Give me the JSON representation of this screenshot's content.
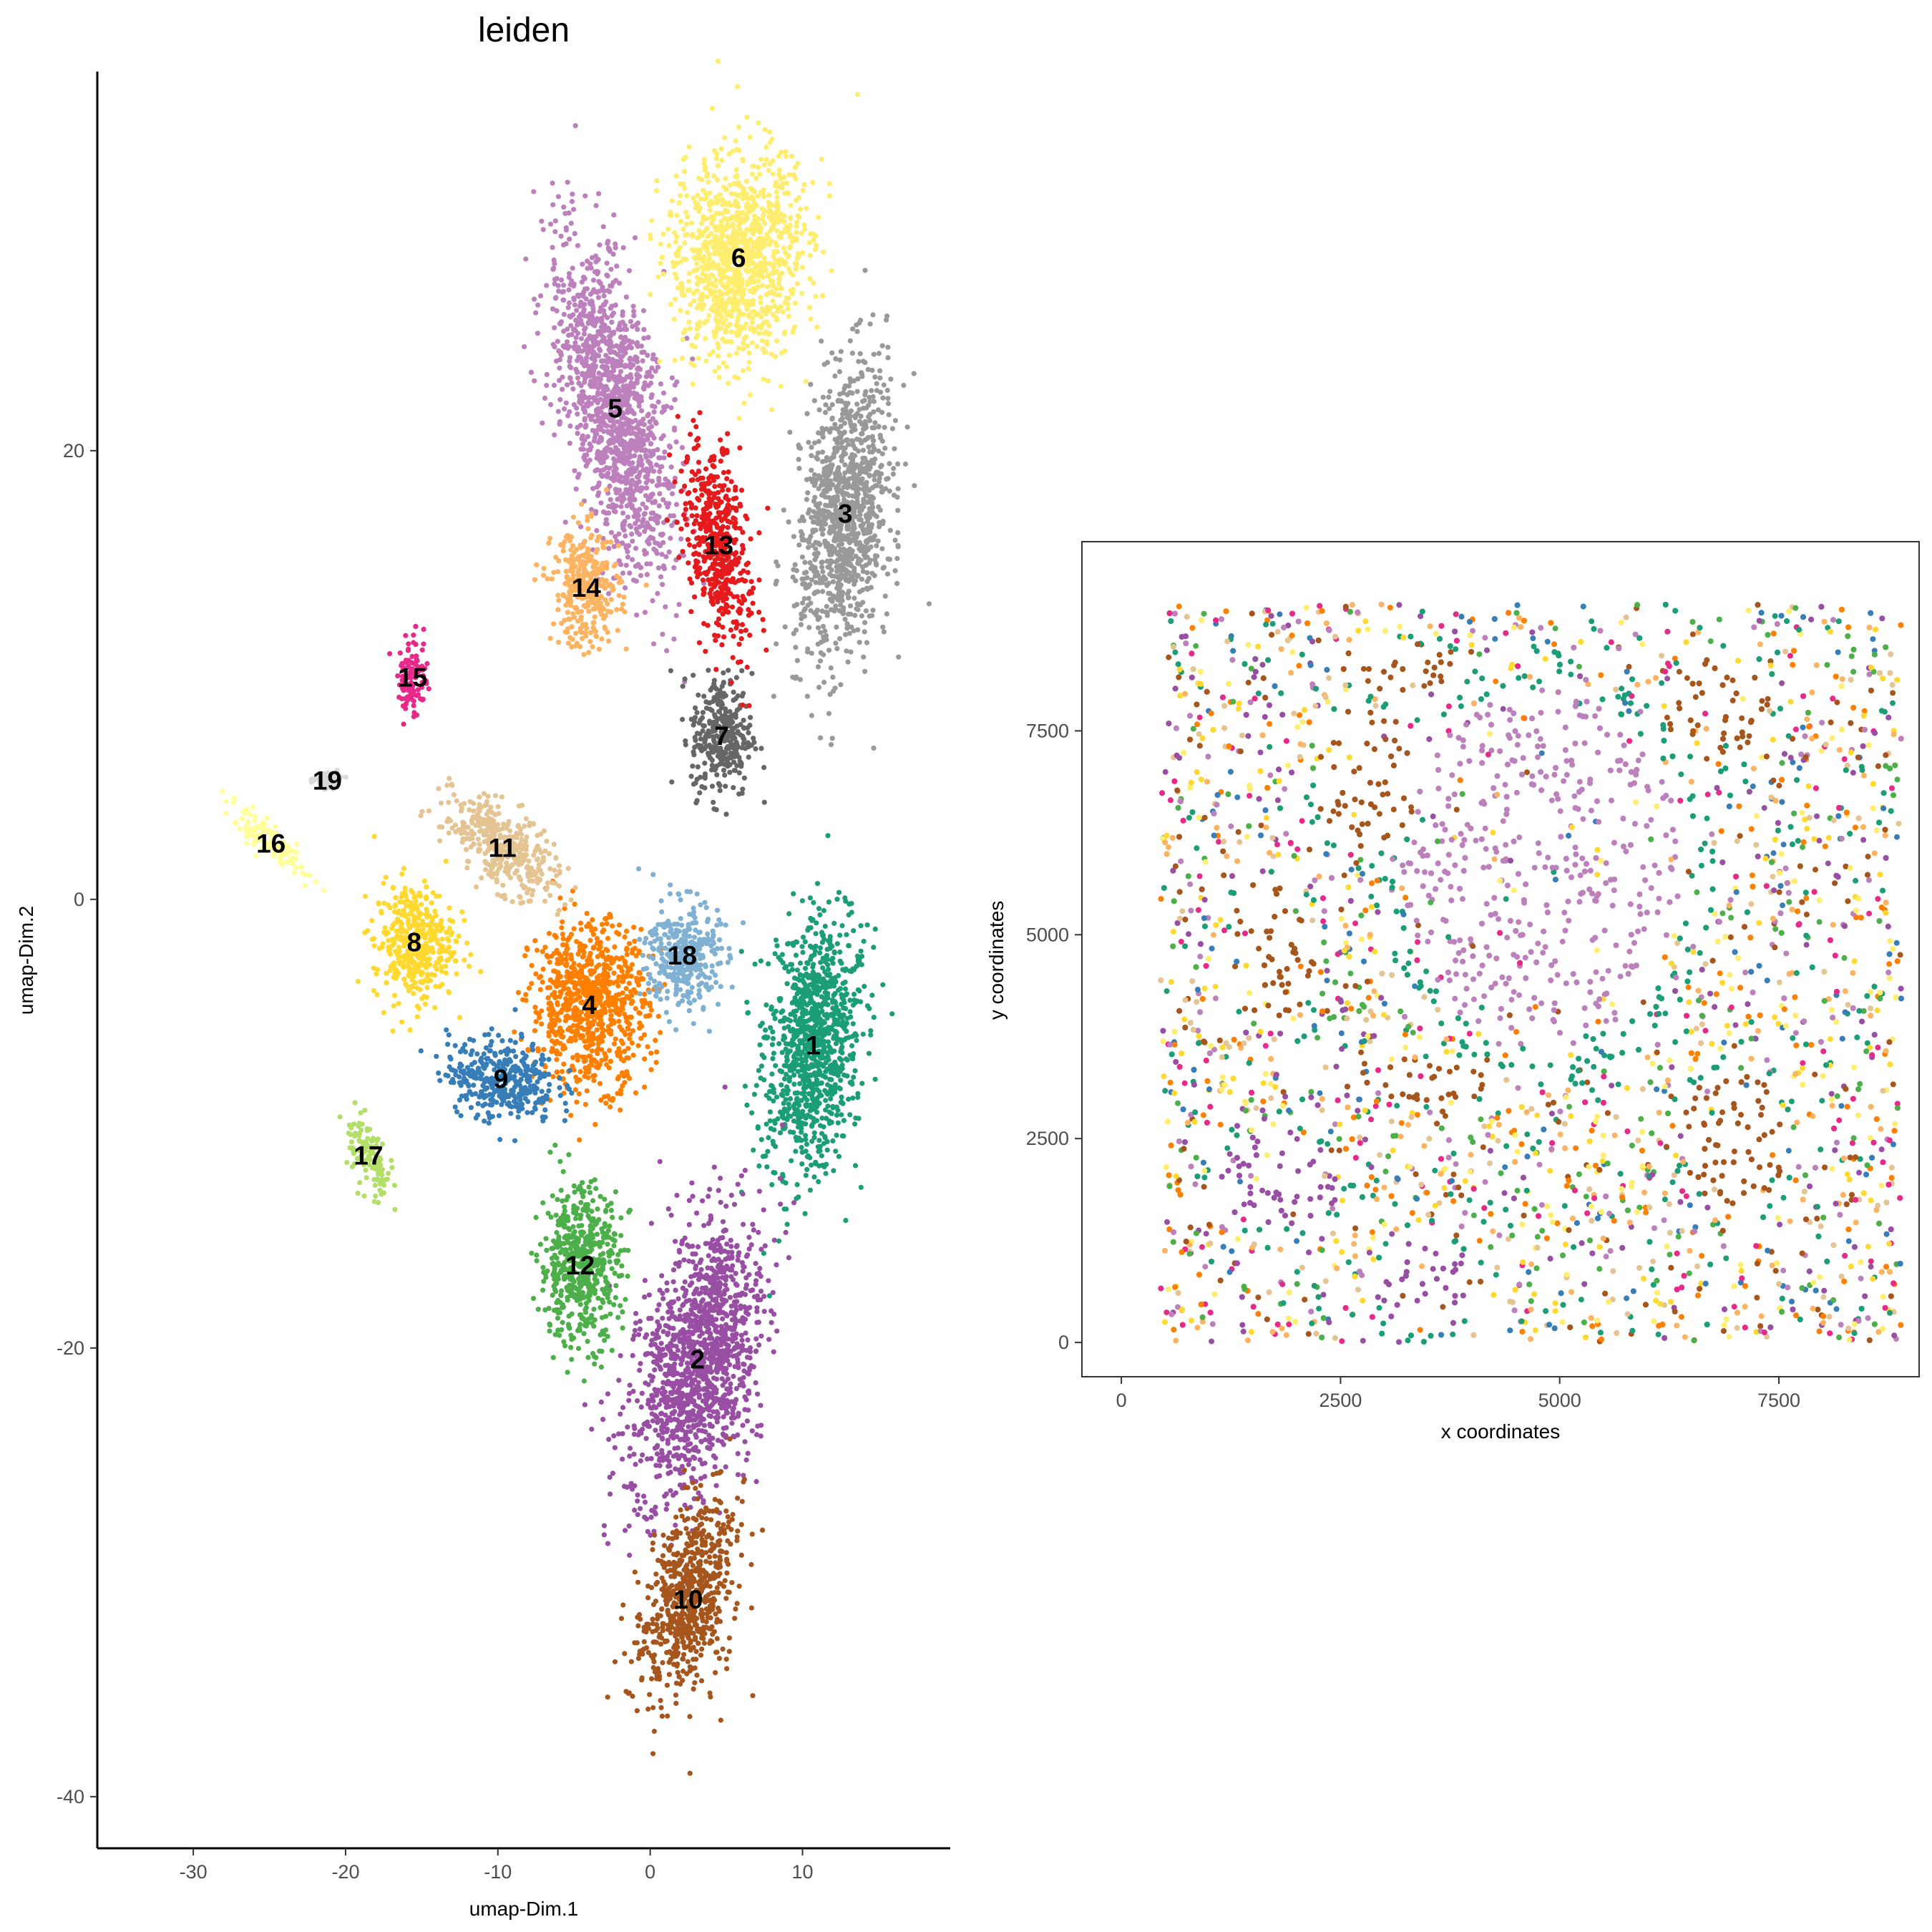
{
  "chart_data": [
    {
      "type": "scatter",
      "title": "leiden",
      "xlabel": "umap-Dim.1",
      "ylabel": "umap-Dim.2",
      "xlim": [
        -36.3,
        19.7
      ],
      "ylim": [
        -42.3,
        36.9
      ],
      "x_ticks": [
        -30,
        -20,
        -10,
        0,
        10
      ],
      "y_ticks": [
        -40,
        -20,
        0,
        20
      ],
      "grid": false,
      "legend": "none",
      "clusters": [
        {
          "name": "1",
          "x": 10.7,
          "y": -6.5,
          "color": "#1b9e77"
        },
        {
          "name": "2",
          "x": 3.1,
          "y": -20.5,
          "color": "#984ea3"
        },
        {
          "name": "3",
          "x": 12.8,
          "y": 17.2,
          "color": "#999999"
        },
        {
          "name": "4",
          "x": -4.0,
          "y": -4.7,
          "color": "#ff7f00"
        },
        {
          "name": "5",
          "x": -2.3,
          "y": 21.9,
          "color": "#bc80bd"
        },
        {
          "name": "6",
          "x": 5.8,
          "y": 28.6,
          "color": "#ffed6f"
        },
        {
          "name": "7",
          "x": 4.7,
          "y": 7.3,
          "color": "#666666"
        },
        {
          "name": "8",
          "x": -15.5,
          "y": -1.9,
          "color": "#ffd92f"
        },
        {
          "name": "9",
          "x": -9.8,
          "y": -8.0,
          "color": "#377eb8"
        },
        {
          "name": "10",
          "x": 2.5,
          "y": -31.2,
          "color": "#a6561c"
        },
        {
          "name": "11",
          "x": -9.7,
          "y": 2.3,
          "color": "#e5c494"
        },
        {
          "name": "12",
          "x": -4.6,
          "y": -16.3,
          "color": "#4daf4a"
        },
        {
          "name": "13",
          "x": 4.5,
          "y": 15.8,
          "color": "#e41a1c"
        },
        {
          "name": "14",
          "x": -4.2,
          "y": 13.9,
          "color": "#fdb462"
        },
        {
          "name": "15",
          "x": -15.6,
          "y": 9.9,
          "color": "#e7298a"
        },
        {
          "name": "16",
          "x": -24.9,
          "y": 2.5,
          "color": "#ffff99"
        },
        {
          "name": "17",
          "x": -18.5,
          "y": -11.4,
          "color": "#b3de69"
        },
        {
          "name": "18",
          "x": 2.1,
          "y": -2.5,
          "color": "#80b1d3"
        },
        {
          "name": "19",
          "x": -21.2,
          "y": 5.3,
          "color": "#d9d9d9"
        }
      ]
    },
    {
      "type": "scatter",
      "title": "",
      "xlabel": "x coordinates",
      "ylabel": "y coordinates",
      "xlim": [
        -450,
        9100
      ],
      "ylim": [
        -420,
        9820
      ],
      "x_ticks": [
        0,
        2500,
        5000,
        7500
      ],
      "y_ticks": [
        0,
        2500,
        5000,
        7500
      ],
      "grid": false,
      "legend": "none",
      "tissue_extent": {
        "x": [
          450,
          8950
        ],
        "y": [
          0,
          9050
        ]
      }
    }
  ]
}
